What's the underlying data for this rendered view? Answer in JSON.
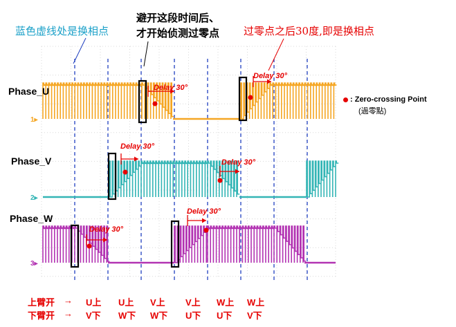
{
  "annotations": {
    "blue_dashed_note": "蓝色虚线处是换相点",
    "avoid_note_line1": "避开这段时间后、",
    "avoid_note_line2": "才开始侦测过零点",
    "thirty_deg_note": "过零点之后30度,即是换相点"
  },
  "phases": [
    {
      "label": "Phase_U",
      "channel": "1",
      "color": "#f5a623"
    },
    {
      "label": "Phase_V",
      "channel": "2",
      "color": "#33b5b5"
    },
    {
      "label": "Phase_W",
      "channel": "3",
      "color": "#b233b2"
    }
  ],
  "delay_labels": [
    "Delay 30°",
    "Delay 30°",
    "Delay 30°",
    "Delay 30°",
    "Delay 30°",
    "Delay 30°"
  ],
  "legend": {
    "marker_text": ": Zero-crossing Point",
    "sub_text": "(過零點)"
  },
  "commutation": {
    "upper_label": "上臂开",
    "lower_label": "下臂开",
    "arrow": "→",
    "upper": [
      "U上",
      "U上",
      "V上",
      "V上",
      "W上",
      "W上"
    ],
    "lower": [
      "V下",
      "W下",
      "W下",
      "U下",
      "U下",
      "V下"
    ]
  },
  "colors": {
    "grid_dash": "#1f3fbf",
    "accent_red": "#e60000",
    "cyan_note": "#1aa0c8"
  }
}
